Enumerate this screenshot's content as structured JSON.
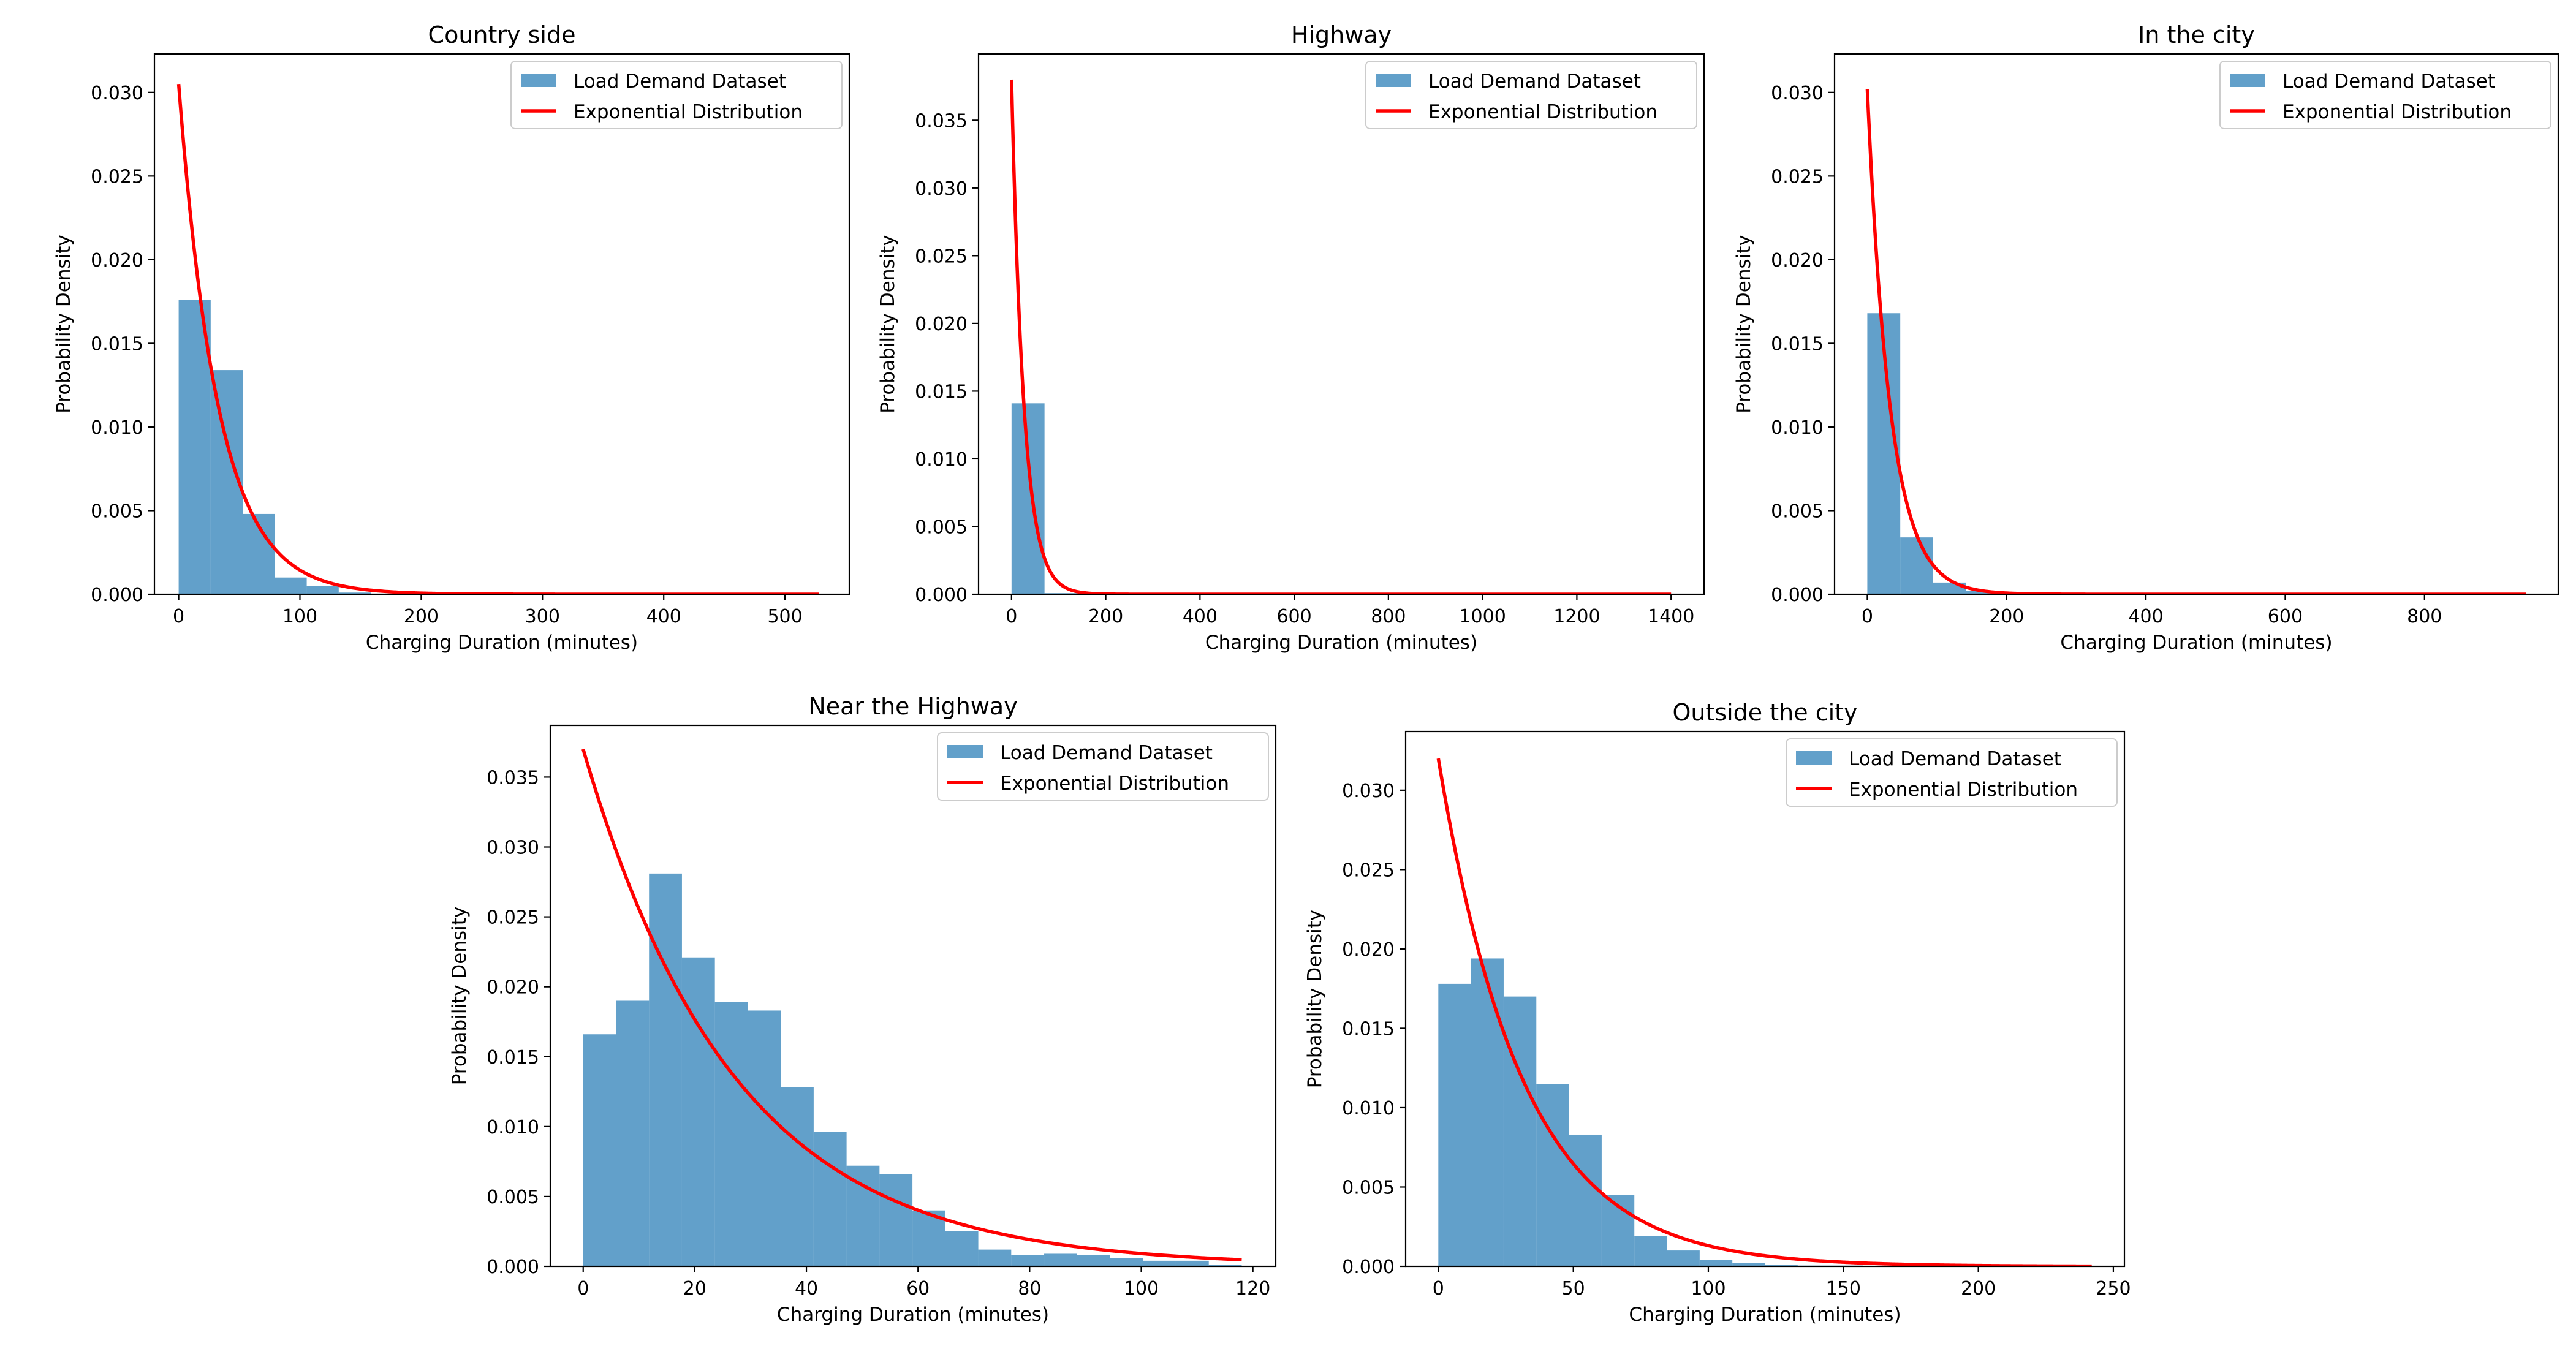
{
  "colors": {
    "histogram": "#1f77b4",
    "fit_line": "#ff0000",
    "axis": "#000000",
    "legend_border": "#cccccc",
    "background": "#ffffff"
  },
  "chart_data": [
    {
      "id": "country-side",
      "type": "histogram+line",
      "title": "Country side",
      "xlabel": "Charging Duration (minutes)",
      "ylabel": "Probability Density",
      "xlim": [
        -20,
        553
      ],
      "ylim": [
        0,
        0.0323
      ],
      "xticks": [
        0,
        100,
        200,
        300,
        400,
        500
      ],
      "yticks": [
        0,
        0.005,
        0.01,
        0.015,
        0.02,
        0.025,
        0.03
      ],
      "ytick_decimals": 3,
      "bins": {
        "edges": [
          0,
          26.4,
          52.8,
          79.2,
          105.6,
          132.0,
          158.4,
          184.8,
          211.2,
          237.6,
          264.0,
          290.4,
          316.8,
          343.2,
          369.6,
          396.0,
          422.4,
          448.8,
          475.2,
          501.6,
          528.0
        ],
        "densities": [
          0.0176,
          0.0134,
          0.0048,
          0.001,
          0.0005,
          0.0001,
          4e-05,
          2e-05,
          1e-05,
          0,
          0,
          0,
          0,
          0,
          0,
          0,
          0,
          0,
          0,
          1e-05
        ]
      },
      "fit": {
        "type": "exponential",
        "rate": 0.0305,
        "x_range": [
          0,
          528
        ]
      },
      "legend": {
        "location": "upper right",
        "entries": [
          "Load Demand Dataset",
          "Exponential Distribution"
        ]
      }
    },
    {
      "id": "highway",
      "type": "histogram+line",
      "title": "Highway",
      "xlabel": "Charging Duration (minutes)",
      "ylabel": "Probability Density",
      "xlim": [
        -70,
        1470
      ],
      "ylim": [
        0,
        0.0399
      ],
      "xticks": [
        0,
        200,
        400,
        600,
        800,
        1000,
        1200,
        1400
      ],
      "yticks": [
        0,
        0.005,
        0.01,
        0.015,
        0.02,
        0.025,
        0.03,
        0.035
      ],
      "ytick_decimals": 3,
      "bins": {
        "edges": [
          0,
          70,
          140,
          210,
          280,
          350,
          420,
          490,
          560,
          630,
          700,
          770,
          840,
          910,
          980,
          1050,
          1120,
          1190,
          1260,
          1330,
          1400
        ],
        "densities": [
          0.0141,
          8e-05,
          2e-05,
          1e-05,
          0,
          0,
          0,
          0,
          0,
          0,
          0,
          0,
          0,
          0,
          0,
          0,
          0,
          0,
          0,
          5e-06
        ]
      },
      "fit": {
        "type": "exponential",
        "rate": 0.038,
        "x_range": [
          0,
          1400
        ]
      },
      "legend": {
        "location": "upper right",
        "entries": [
          "Load Demand Dataset",
          "Exponential Distribution"
        ]
      }
    },
    {
      "id": "in-the-city",
      "type": "histogram+line",
      "title": "In the city",
      "xlabel": "Charging Duration (minutes)",
      "ylabel": "Probability Density",
      "xlim": [
        -47,
        992
      ],
      "ylim": [
        0,
        0.0323
      ],
      "xticks": [
        0,
        200,
        400,
        600,
        800
      ],
      "yticks": [
        0,
        0.005,
        0.01,
        0.015,
        0.02,
        0.025,
        0.03
      ],
      "ytick_decimals": 3,
      "bins": {
        "edges": [
          0,
          47.3,
          94.6,
          141.9,
          189.2,
          236.5,
          283.8,
          331.1,
          378.4,
          425.7,
          473.0,
          520.3,
          567.6,
          614.9,
          662.2,
          709.5,
          756.8,
          804.1,
          851.4,
          898.7,
          946.0
        ],
        "densities": [
          0.0168,
          0.0034,
          0.0007,
          0.0002,
          5e-05,
          2e-05,
          1e-05,
          0,
          0,
          0,
          0,
          0,
          0,
          0,
          0,
          0,
          0,
          0,
          0,
          5e-06
        ]
      },
      "fit": {
        "type": "exponential",
        "rate": 0.0302,
        "x_range": [
          0,
          946
        ]
      },
      "legend": {
        "location": "upper right",
        "entries": [
          "Load Demand Dataset",
          "Exponential Distribution"
        ]
      }
    },
    {
      "id": "near-the-highway",
      "type": "histogram+line",
      "title": "Near the Highway",
      "xlabel": "Charging Duration (minutes)",
      "ylabel": "Probability Density",
      "xlim": [
        -5.9,
        124.1
      ],
      "ylim": [
        0,
        0.0387
      ],
      "xticks": [
        0,
        20,
        40,
        60,
        80,
        100,
        120
      ],
      "yticks": [
        0,
        0.005,
        0.01,
        0.015,
        0.02,
        0.025,
        0.03,
        0.035
      ],
      "ytick_decimals": 3,
      "bins": {
        "edges": [
          0,
          5.9,
          11.8,
          17.7,
          23.6,
          29.5,
          35.4,
          41.3,
          47.2,
          53.1,
          59.0,
          64.9,
          70.8,
          76.7,
          82.6,
          88.5,
          94.4,
          100.3,
          106.2,
          112.1,
          118.0
        ],
        "densities": [
          0.0166,
          0.019,
          0.0281,
          0.0221,
          0.0189,
          0.0183,
          0.0128,
          0.0096,
          0.0072,
          0.0066,
          0.004,
          0.0025,
          0.0012,
          0.0008,
          0.0009,
          0.0008,
          0.0006,
          0.0004,
          0.0004,
          0.0001
        ]
      },
      "fit": {
        "type": "exponential",
        "rate": 0.037,
        "x_range": [
          0,
          118
        ]
      },
      "legend": {
        "location": "upper right",
        "entries": [
          "Load Demand Dataset",
          "Exponential Distribution"
        ]
      }
    },
    {
      "id": "outside-the-city",
      "type": "histogram+line",
      "title": "Outside the city",
      "xlabel": "Charging Duration (minutes)",
      "ylabel": "Probability Density",
      "xlim": [
        -12.1,
        254.1
      ],
      "ylim": [
        0,
        0.0337
      ],
      "xticks": [
        0,
        50,
        100,
        150,
        200,
        250
      ],
      "yticks": [
        0,
        0.005,
        0.01,
        0.015,
        0.02,
        0.025,
        0.03
      ],
      "ytick_decimals": 3,
      "bins": {
        "edges": [
          0,
          12.1,
          24.2,
          36.3,
          48.4,
          60.5,
          72.6,
          84.7,
          96.8,
          108.9,
          121.0,
          133.1,
          145.2,
          157.3,
          169.4,
          181.5,
          193.6,
          205.7,
          217.8,
          229.9,
          242.0
        ],
        "densities": [
          0.0178,
          0.0194,
          0.017,
          0.0115,
          0.0083,
          0.0045,
          0.0019,
          0.001,
          0.0004,
          0.0002,
          0.0001,
          5e-05,
          5e-05,
          3e-05,
          2e-05,
          1e-05,
          1e-05,
          0,
          0,
          1e-05
        ]
      },
      "fit": {
        "type": "exponential",
        "rate": 0.032,
        "x_range": [
          0,
          242
        ]
      },
      "legend": {
        "location": "upper right",
        "entries": [
          "Load Demand Dataset",
          "Exponential Distribution"
        ]
      }
    }
  ]
}
